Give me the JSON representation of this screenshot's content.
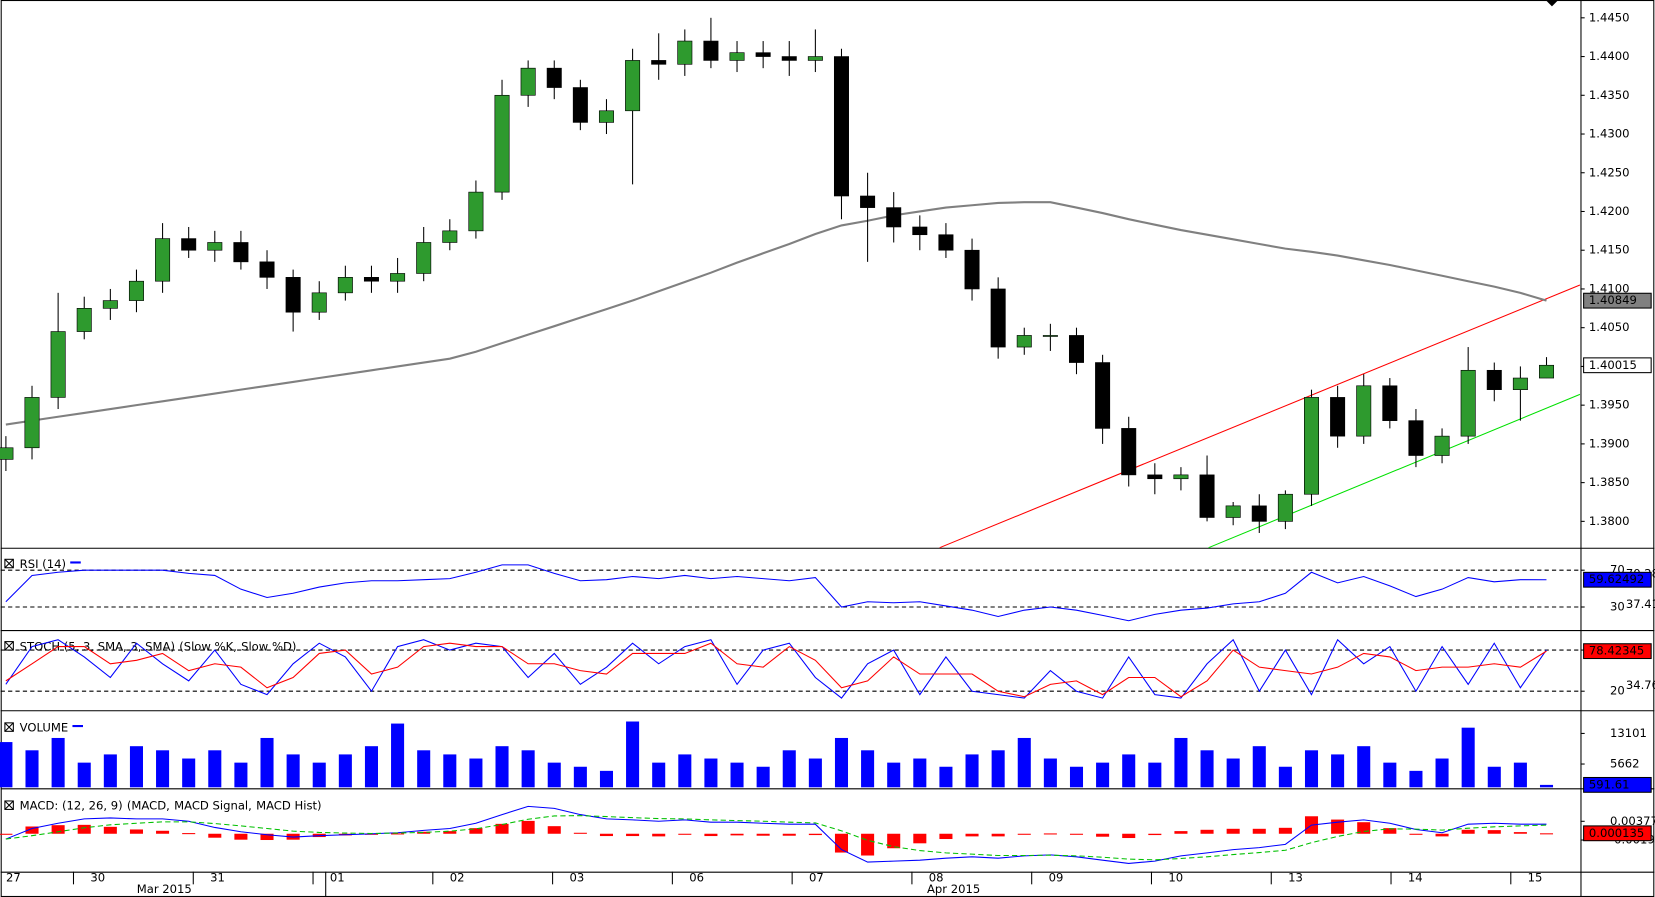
{
  "chart_data": [
    {
      "type": "candlestick",
      "open": [
        1.388,
        1.3895,
        1.396,
        1.4045,
        1.4075,
        1.4085,
        1.411,
        1.4165,
        1.415,
        1.416,
        1.4135,
        1.4115,
        1.407,
        1.4095,
        1.4115,
        1.411,
        1.412,
        1.416,
        1.4175,
        1.4225,
        1.435,
        1.4385,
        1.436,
        1.4315,
        1.433,
        1.4395,
        1.439,
        1.442,
        1.4395,
        1.4405,
        1.44,
        1.4395,
        1.44,
        1.422,
        1.4205,
        1.418,
        1.417,
        1.415,
        1.41,
        1.4025,
        1.404,
        1.404,
        1.4005,
        1.392,
        1.386,
        1.3855,
        1.386,
        1.3805,
        1.382,
        1.38,
        1.3835,
        1.396,
        1.391,
        1.3975,
        1.393,
        1.3885,
        1.391,
        1.3995,
        1.397,
        1.3985
      ],
      "high": [
        1.391,
        1.3975,
        1.4095,
        1.409,
        1.41,
        1.4125,
        1.4185,
        1.418,
        1.4175,
        1.4175,
        1.415,
        1.4125,
        1.411,
        1.413,
        1.413,
        1.414,
        1.418,
        1.419,
        1.424,
        1.437,
        1.4395,
        1.4395,
        1.437,
        1.4345,
        1.441,
        1.443,
        1.4435,
        1.445,
        1.442,
        1.442,
        1.442,
        1.4435,
        1.441,
        1.425,
        1.4225,
        1.4195,
        1.4185,
        1.4165,
        1.4115,
        1.405,
        1.4055,
        1.405,
        1.4015,
        1.3935,
        1.3875,
        1.387,
        1.3885,
        1.3825,
        1.3835,
        1.384,
        1.397,
        1.3975,
        1.399,
        1.3985,
        1.3945,
        1.392,
        1.4025,
        1.4005,
        1.4,
        1.4012
      ],
      "low": [
        1.3865,
        1.388,
        1.3945,
        1.4035,
        1.406,
        1.407,
        1.4095,
        1.414,
        1.4135,
        1.4125,
        1.41,
        1.4045,
        1.406,
        1.4085,
        1.4095,
        1.4095,
        1.411,
        1.415,
        1.4165,
        1.4215,
        1.4335,
        1.4345,
        1.4305,
        1.43,
        1.4235,
        1.437,
        1.4375,
        1.4385,
        1.438,
        1.4385,
        1.4375,
        1.438,
        1.419,
        1.4135,
        1.416,
        1.415,
        1.414,
        1.4085,
        1.401,
        1.4015,
        1.402,
        1.399,
        1.39,
        1.3845,
        1.3835,
        1.384,
        1.38,
        1.3795,
        1.3785,
        1.379,
        1.382,
        1.3895,
        1.39,
        1.392,
        1.387,
        1.3875,
        1.39,
        1.3955,
        1.393,
        1.3985
      ],
      "close": [
        1.3895,
        1.396,
        1.4045,
        1.4075,
        1.4085,
        1.411,
        1.4165,
        1.415,
        1.416,
        1.4135,
        1.4115,
        1.407,
        1.4095,
        1.4115,
        1.411,
        1.412,
        1.416,
        1.4175,
        1.4225,
        1.435,
        1.4385,
        1.436,
        1.4315,
        1.433,
        1.4395,
        1.439,
        1.442,
        1.4395,
        1.4405,
        1.44,
        1.4395,
        1.44,
        1.422,
        1.4205,
        1.418,
        1.417,
        1.415,
        1.41,
        1.4025,
        1.404,
        1.404,
        1.4005,
        1.392,
        1.386,
        1.3855,
        1.386,
        1.3805,
        1.382,
        1.38,
        1.3835,
        1.396,
        1.391,
        1.3975,
        1.393,
        1.3885,
        1.391,
        1.3995,
        1.397,
        1.3985,
        1.40015
      ],
      "up_color": "#2e9a2e",
      "down_color": "#000000",
      "ma": {
        "color": "#808080",
        "values": [
          1.3925,
          1.393,
          1.3935,
          1.394,
          1.3945,
          1.395,
          1.3955,
          1.396,
          1.3965,
          1.397,
          1.3975,
          1.398,
          1.3985,
          1.399,
          1.3995,
          1.4,
          1.4005,
          1.401,
          1.4019,
          1.403,
          1.4041,
          1.4052,
          1.4063,
          1.4074,
          1.4085,
          1.4097,
          1.4109,
          1.4121,
          1.4134,
          1.4146,
          1.4158,
          1.4171,
          1.4182,
          1.4188,
          1.4195,
          1.42,
          1.4205,
          1.4208,
          1.4211,
          1.4212,
          1.4212,
          1.4205,
          1.4198,
          1.419,
          1.4183,
          1.4176,
          1.417,
          1.4164,
          1.4158,
          1.4152,
          1.4148,
          1.4143,
          1.4137,
          1.4131,
          1.4124,
          1.4117,
          1.411,
          1.4103,
          1.4095,
          1.40849
        ]
      },
      "trendlines": [
        {
          "color": "#ff0000",
          "x": [
            35.76,
            60.28
          ],
          "values": [
            1.3766,
            1.4105
          ]
        },
        {
          "color": "#00e000",
          "x": [
            46.06,
            60.28
          ],
          "values": [
            1.3766,
            1.3964
          ]
        }
      ],
      "ylim": [
        1.3766,
        1.4473
      ],
      "yticks": [
        {
          "value": 1.445,
          "label": "1.4450"
        },
        {
          "value": 1.44,
          "label": "1.4400"
        },
        {
          "value": 1.435,
          "label": "1.4350"
        },
        {
          "value": 1.43,
          "label": "1.4300"
        },
        {
          "value": 1.425,
          "label": "1.4250"
        },
        {
          "value": 1.42,
          "label": "1.4200"
        },
        {
          "value": 1.415,
          "label": "1.4150"
        },
        {
          "value": 1.41,
          "label": "1.4100"
        },
        {
          "value": 1.405,
          "label": "1.4050"
        },
        {
          "value": 1.4,
          "label": "1.4000"
        },
        {
          "value": 1.395,
          "label": "1.3950"
        },
        {
          "value": 1.39,
          "label": "1.3900"
        },
        {
          "value": 1.385,
          "label": "1.3850"
        },
        {
          "value": 1.38,
          "label": "1.3800"
        }
      ]
    },
    {
      "type": "line",
      "title": "RSI (14)",
      "series": [
        {
          "name": "",
          "color": "#0000ff",
          "values": [
            35.7,
            64.3,
            67.7,
            70,
            70,
            70,
            70,
            66.6,
            64.3,
            49.4,
            40.3,
            44.9,
            51.7,
            56.3,
            58.6,
            58.6,
            59.7,
            60.9,
            67.7,
            75.7,
            75.7,
            66.6,
            58.6,
            59.7,
            63.1,
            60.9,
            64.3,
            60.9,
            63.1,
            60.9,
            58.6,
            62,
            30,
            35.7,
            34.6,
            35.7,
            31.1,
            26.6,
            19.7,
            26.6,
            30,
            26.6,
            20.9,
            15.1,
            22,
            26.6,
            28.9,
            33.4,
            35.7,
            44.9,
            67.7,
            56.3,
            63.1,
            52.9,
            41.4,
            49.4,
            62,
            57.4,
            59.7,
            59.62492
          ]
        }
      ],
      "ylim": [
        5,
        91
      ],
      "yticks": [
        70,
        30
      ],
      "scale_labels": [
        70.28,
        37.41
      ],
      "grid": "dashed"
    },
    {
      "type": "line",
      "title": "STOCH (5, 3, SMA, 3, SMA)",
      "series": [
        {
          "name": "(Slow %K,",
          "color": "#0000ff",
          "values": [
            30,
            85,
            95,
            70,
            40,
            90,
            60,
            35,
            80,
            30,
            15,
            60,
            90,
            70,
            20,
            85,
            95,
            80,
            90,
            85,
            40,
            75,
            30,
            55,
            90,
            60,
            85,
            95,
            30,
            80,
            90,
            40,
            10,
            60,
            80,
            15,
            70,
            20,
            15,
            10,
            50,
            20,
            10,
            70,
            15,
            10,
            60,
            95,
            20,
            80,
            15,
            95,
            60,
            85,
            20,
            85,
            30,
            90,
            25,
            80.2466
          ]
        },
        {
          "name": "Slow %D)",
          "color": "#ff0000",
          "values": [
            35,
            60,
            85,
            85,
            60,
            65,
            75,
            50,
            60,
            55,
            25,
            40,
            75,
            80,
            45,
            55,
            85,
            90,
            85,
            85,
            60,
            60,
            50,
            45,
            75,
            75,
            75,
            90,
            60,
            55,
            85,
            65,
            25,
            35,
            70,
            45,
            45,
            45,
            20,
            12,
            30,
            35,
            15,
            40,
            40,
            12,
            35,
            80,
            55,
            50,
            45,
            55,
            75,
            70,
            50,
            55,
            55,
            60,
            55,
            78.42345
          ]
        }
      ],
      "ylim": [
        -7.7,
        104.6
      ],
      "yticks": [
        80,
        20
      ],
      "scale_labels": [
        34.76
      ],
      "grid": "dashed"
    },
    {
      "type": "bar",
      "title": "VOLUME",
      "color": "#0000ff",
      "values": [
        11000,
        9000,
        12000,
        6000,
        8000,
        10000,
        9000,
        7000,
        9000,
        6000,
        12000,
        8000,
        6000,
        8000,
        10000,
        15500,
        9000,
        8000,
        7000,
        10000,
        9000,
        6000,
        5000,
        4000,
        16000,
        6000,
        8000,
        7000,
        6000,
        5000,
        9000,
        7000,
        12000,
        9000,
        6000,
        7000,
        5000,
        8000,
        9000,
        12000,
        7000,
        5000,
        6000,
        8000,
        6000,
        12000,
        9000,
        7000,
        10000,
        5000,
        9000,
        8000,
        10000,
        6000,
        4000,
        7000,
        14500,
        5000,
        6000,
        591.61
      ],
      "ylim": [
        -240,
        17720
      ],
      "yticks": [
        13101,
        5662
      ]
    },
    {
      "type": "macd",
      "title": "MACD: (12, 26, 9)",
      "series": [
        {
          "name": "(MACD,",
          "color": "#0000ff",
          "values": [
            -0.0016,
            0.0016,
            0.0032,
            0.0045,
            0.0048,
            0.0045,
            0.0045,
            0.0038,
            0.0019,
            0.0006,
            -0.0003,
            -0.001,
            -0.0006,
            -0.0003,
            0,
            0.0003,
            0.001,
            0.0016,
            0.0032,
            0.0058,
            0.0083,
            0.0077,
            0.0058,
            0.0045,
            0.0042,
            0.0038,
            0.0042,
            0.0035,
            0.0035,
            0.0032,
            0.0029,
            0.0029,
            -0.0048,
            -0.0086,
            -0.0083,
            -0.008,
            -0.0074,
            -0.007,
            -0.0074,
            -0.0067,
            -0.0064,
            -0.007,
            -0.008,
            -0.009,
            -0.0083,
            -0.0067,
            -0.0058,
            -0.0048,
            -0.0042,
            -0.0032,
            0.0026,
            0.0035,
            0.0042,
            0.0032,
            0.0013,
            0.0003,
            0.0029,
            0.0032,
            0.0029,
            0.0029
          ]
        },
        {
          "name": "MACD Signal,",
          "color": "#00c000",
          "values": [
            -0.0016,
            -0.0006,
            0.0006,
            0.0018,
            0.0027,
            0.0032,
            0.0036,
            0.0036,
            0.0031,
            0.0024,
            0.0016,
            0.0008,
            0.0004,
            0.0002,
            0.0001,
            0.0002,
            0.0004,
            0.0008,
            0.0015,
            0.0028,
            0.0044,
            0.0054,
            0.0055,
            0.0052,
            0.0049,
            0.0046,
            0.0045,
            0.0042,
            0.004,
            0.0038,
            0.0035,
            0.0033,
            0.0009,
            -0.002,
            -0.0039,
            -0.0051,
            -0.0058,
            -0.0062,
            -0.0066,
            -0.0066,
            -0.0065,
            -0.0067,
            -0.0071,
            -0.0077,
            -0.0079,
            -0.0075,
            -0.007,
            -0.0063,
            -0.0057,
            -0.005,
            -0.0027,
            -0.0008,
            0.0007,
            0.0015,
            0.0014,
            0.0011,
            0.0017,
            0.0021,
            0.0024,
            0.0026
          ]
        },
        {
          "name": "MACD Hist)",
          "color": "#ff0000",
          "values": [
            0,
            0.0022,
            0.0026,
            0.0027,
            0.0021,
            0.0013,
            0.0009,
            0.0002,
            -0.0012,
            -0.0018,
            -0.0019,
            -0.0018,
            -0.001,
            -0.0005,
            -0.0001,
            0.0001,
            0.0006,
            0.0008,
            0.0017,
            0.003,
            0.0039,
            0.0023,
            0.0003,
            -0.0007,
            -0.0007,
            -0.0008,
            -0.0003,
            -0.0007,
            -0.0005,
            -0.0006,
            -0.0006,
            -0.0004,
            -0.0057,
            -0.0066,
            -0.0044,
            -0.0029,
            -0.0016,
            -0.0008,
            -0.0008,
            -0.0001,
            0.0001,
            -0.0003,
            -0.0009,
            -0.0013,
            -0.0004,
            0.0008,
            0.0012,
            0.0015,
            0.0015,
            0.0018,
            0.0053,
            0.0043,
            0.0035,
            0.0017,
            -0.0001,
            -0.0008,
            0.0012,
            0.0011,
            0.0005,
            0.000135
          ]
        }
      ],
      "ylim": [
        -0.0115,
        0.0125
      ],
      "yticks": [
        0.003776,
        -0.001908
      ]
    }
  ],
  "x_axis": {
    "xlim": [
      -0.2,
      60.3
    ],
    "days": [
      "27",
      "30",
      "31",
      "01",
      "02",
      "03",
      "06",
      "07",
      "08",
      "09",
      "10",
      "13",
      "14",
      "15"
    ],
    "months": [
      "Mar 2015",
      "Apr 2015"
    ]
  }
}
